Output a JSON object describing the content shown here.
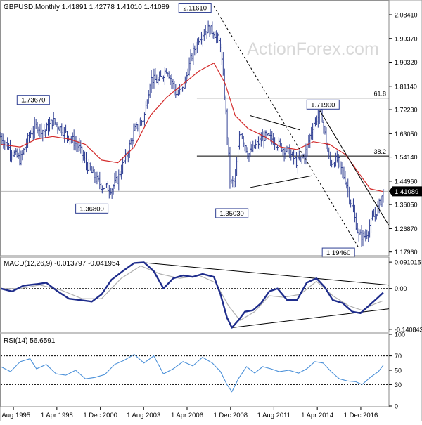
{
  "chart_data": [
    {
      "type": "line",
      "panel": "price",
      "title": "GBPUSD,Monthly  1.41891 1.42778 1.41010 1.41089",
      "watermark": "ActionForex.com",
      "x_tick_labels": [
        "1 Aug 1995",
        "1 Apr 1998",
        "1 Dec 2000",
        "1 Aug 2003",
        "1 Apr 2006",
        "1 Dec 2008",
        "1 Aug 2011",
        "1 Apr 2014",
        "1 Dec 2016"
      ],
      "x_tick_dates": [
        1995.58,
        1998.25,
        2000.92,
        2003.58,
        2006.25,
        2008.92,
        2011.58,
        2014.25,
        2016.92
      ],
      "x_range": [
        1994.8,
        2018.65
      ],
      "ylim": [
        1.168,
        2.135
      ],
      "y_tick_labels": [
        "2.08410",
        "1.99370",
        "1.90320",
        "1.81140",
        "1.72230",
        "1.63050",
        "1.54140",
        "1.44960",
        "1.36050",
        "1.26870",
        "1.17960"
      ],
      "y_tick_values": [
        2.0841,
        1.9937,
        1.9032,
        1.8114,
        1.7223,
        1.6305,
        1.5414,
        1.4496,
        1.3605,
        1.2687,
        1.1796
      ],
      "current_price_label": "1.41089",
      "current_price": 1.41089,
      "series": [
        {
          "name": "",
          "style": "bars",
          "color": "#2f3f93",
          "x": [
            1994.8,
            1995.5,
            1996.0,
            1996.6,
            1997.0,
            1997.5,
            1998.0,
            1998.5,
            1999.0,
            1999.6,
            2000.0,
            2000.5,
            2001.0,
            2001.6,
            2002.0,
            2002.6,
            2003.0,
            2003.6,
            2004.0,
            2004.5,
            2005.0,
            2005.6,
            2006.0,
            2006.5,
            2007.0,
            2007.5,
            2007.9,
            2008.3,
            2008.6,
            2008.9,
            2009.2,
            2009.5,
            2010.0,
            2010.4,
            2011.0,
            2011.5,
            2012.0,
            2012.5,
            2013.0,
            2013.5,
            2014.0,
            2014.5,
            2015.0,
            2015.5,
            2016.0,
            2016.5,
            2016.8,
            2017.2,
            2017.6,
            2018.0,
            2018.3
          ],
          "values": [
            1.62,
            1.56,
            1.53,
            1.63,
            1.66,
            1.64,
            1.68,
            1.65,
            1.62,
            1.58,
            1.52,
            1.47,
            1.43,
            1.42,
            1.46,
            1.56,
            1.64,
            1.69,
            1.84,
            1.83,
            1.88,
            1.78,
            1.8,
            1.92,
            2.0,
            2.03,
            2.02,
            1.97,
            1.74,
            1.44,
            1.45,
            1.65,
            1.55,
            1.58,
            1.62,
            1.61,
            1.58,
            1.56,
            1.52,
            1.55,
            1.67,
            1.71,
            1.52,
            1.53,
            1.45,
            1.32,
            1.24,
            1.24,
            1.3,
            1.35,
            1.41
          ]
        },
        {
          "name": "",
          "style": "line",
          "color": "#d42c2c",
          "x": [
            1994.8,
            1996.0,
            1997.0,
            1998.0,
            1999.0,
            2000.0,
            2001.0,
            2002.0,
            2003.0,
            2004.0,
            2005.0,
            2006.0,
            2007.0,
            2007.9,
            2008.6,
            2009.2,
            2010.0,
            2011.0,
            2012.0,
            2013.0,
            2014.0,
            2015.0,
            2016.0,
            2016.8,
            2017.5,
            2018.3
          ],
          "values": [
            1.59,
            1.58,
            1.61,
            1.62,
            1.61,
            1.59,
            1.53,
            1.52,
            1.58,
            1.7,
            1.77,
            1.82,
            1.87,
            1.9,
            1.82,
            1.7,
            1.65,
            1.62,
            1.58,
            1.57,
            1.6,
            1.59,
            1.55,
            1.48,
            1.42,
            1.41
          ]
        }
      ],
      "annotations": [
        {
          "label": "2.11610",
          "x": 2007.9,
          "y": 2.1161
        },
        {
          "label": "1.73670",
          "x": 1996.8,
          "y": 1.7367
        },
        {
          "label": "1.36800",
          "x": 2000.4,
          "y": 1.368
        },
        {
          "label": "1.35030",
          "x": 2009.0,
          "y": 1.3503
        },
        {
          "label": "1.71900",
          "x": 2014.6,
          "y": 1.719
        },
        {
          "label": "1.19460",
          "x": 2016.8,
          "y": 1.1946
        }
      ],
      "fib_levels": [
        {
          "label": "61.8",
          "y": 1.7663
        },
        {
          "label": "38.2",
          "y": 1.5455
        }
      ],
      "trendlines": [
        {
          "x1": 2007.9,
          "y1": 2.1161,
          "x2": 2016.8,
          "y2": 1.1946,
          "dashed": true
        },
        {
          "x1": 2010.1,
          "y1": 1.7,
          "x2": 2013.2,
          "y2": 1.645,
          "dashed": false
        },
        {
          "x1": 2010.1,
          "y1": 1.425,
          "x2": 2013.9,
          "y2": 1.47,
          "dashed": false
        },
        {
          "x1": 2014.4,
          "y1": 1.719,
          "x2": 2018.65,
          "y2": 1.28,
          "dashed": false
        }
      ]
    },
    {
      "type": "line",
      "panel": "macd",
      "title": "MACD(12,26,9) -0.013797 -0.041954",
      "ylim": [
        -0.1484,
        0.1058
      ],
      "y_tick_labels": [
        "0.091015",
        "0.00",
        "-0.140843"
      ],
      "y_tick_values": [
        0.091015,
        0.0,
        -0.140843
      ],
      "series": [
        {
          "name": "",
          "color": "#1f2d8c",
          "x": [
            1994.8,
            1995.5,
            1996.2,
            1997.0,
            1997.6,
            1998.3,
            1999.0,
            1999.7,
            2000.4,
            2001.0,
            2001.6,
            2002.3,
            2003.0,
            2003.6,
            2004.2,
            2004.8,
            2005.4,
            2006.0,
            2006.6,
            2007.2,
            2007.9,
            2008.3,
            2008.7,
            2009.0,
            2009.4,
            2009.8,
            2010.3,
            2010.8,
            2011.3,
            2011.8,
            2012.4,
            2013.0,
            2013.6,
            2014.2,
            2014.7,
            2015.2,
            2015.8,
            2016.4,
            2016.9,
            2017.4,
            2017.9,
            2018.3
          ],
          "values": [
            0.0,
            -0.01,
            0.01,
            0.015,
            0.02,
            -0.01,
            -0.035,
            -0.04,
            -0.045,
            -0.02,
            0.03,
            0.06,
            0.088,
            0.09,
            0.06,
            0.0,
            0.035,
            0.045,
            0.04,
            0.05,
            0.04,
            -0.02,
            -0.1,
            -0.135,
            -0.11,
            -0.08,
            -0.075,
            -0.05,
            -0.01,
            0.0,
            -0.04,
            -0.04,
            0.02,
            0.035,
            0.005,
            -0.04,
            -0.05,
            -0.08,
            -0.085,
            -0.06,
            -0.035,
            -0.014
          ]
        },
        {
          "name": "",
          "color": "#b0b0b0",
          "x": [
            1994.8,
            1996.0,
            1997.2,
            1998.5,
            1999.8,
            2001.0,
            2002.2,
            2003.4,
            2004.6,
            2005.8,
            2007.0,
            2008.0,
            2008.8,
            2009.5,
            2010.4,
            2011.3,
            2012.2,
            2013.2,
            2014.2,
            2015.2,
            2016.2,
            2017.0,
            2017.7,
            2018.3
          ],
          "values": [
            0.0,
            0.0,
            0.012,
            -0.005,
            -0.035,
            -0.035,
            0.035,
            0.078,
            0.05,
            0.035,
            0.045,
            0.02,
            -0.06,
            -0.11,
            -0.08,
            -0.025,
            -0.03,
            -0.02,
            0.025,
            -0.025,
            -0.06,
            -0.075,
            -0.055,
            -0.042
          ]
        }
      ],
      "trendlines": [
        {
          "x1": 2003.4,
          "y1": 0.09,
          "x2": 2018.65,
          "y2": 0.012,
          "dashed": false
        },
        {
          "x1": 2009.0,
          "y1": -0.135,
          "x2": 2018.65,
          "y2": -0.07,
          "dashed": false
        }
      ]
    },
    {
      "type": "line",
      "panel": "rsi",
      "title": "RSI(14) 56.6591",
      "ylim": [
        0,
        100
      ],
      "y_tick_labels": [
        "100",
        "70",
        "50",
        "30",
        "0"
      ],
      "y_tick_values": [
        100,
        70,
        50,
        30,
        0
      ],
      "reference_levels": [
        70,
        30
      ],
      "series": [
        {
          "name": "",
          "color": "#4a90d9",
          "x": [
            1994.8,
            1995.4,
            1996.0,
            1996.6,
            1997.0,
            1997.6,
            1998.2,
            1998.8,
            1999.4,
            2000.0,
            2000.6,
            2001.2,
            2001.8,
            2002.4,
            2003.0,
            2003.6,
            2004.2,
            2004.8,
            2005.4,
            2006.0,
            2006.6,
            2007.2,
            2007.8,
            2008.3,
            2008.7,
            2009.0,
            2009.4,
            2009.9,
            2010.4,
            2010.9,
            2011.4,
            2011.9,
            2012.5,
            2013.1,
            2013.6,
            2014.1,
            2014.6,
            2015.1,
            2015.6,
            2016.1,
            2016.6,
            2017.0,
            2017.5,
            2018.0,
            2018.3
          ],
          "values": [
            55,
            48,
            62,
            66,
            52,
            58,
            45,
            43,
            50,
            38,
            40,
            44,
            58,
            64,
            72,
            60,
            70,
            45,
            52,
            62,
            56,
            68,
            60,
            48,
            30,
            20,
            38,
            55,
            46,
            55,
            52,
            48,
            50,
            46,
            52,
            62,
            60,
            48,
            38,
            35,
            34,
            30,
            40,
            48,
            57
          ]
        }
      ]
    }
  ]
}
